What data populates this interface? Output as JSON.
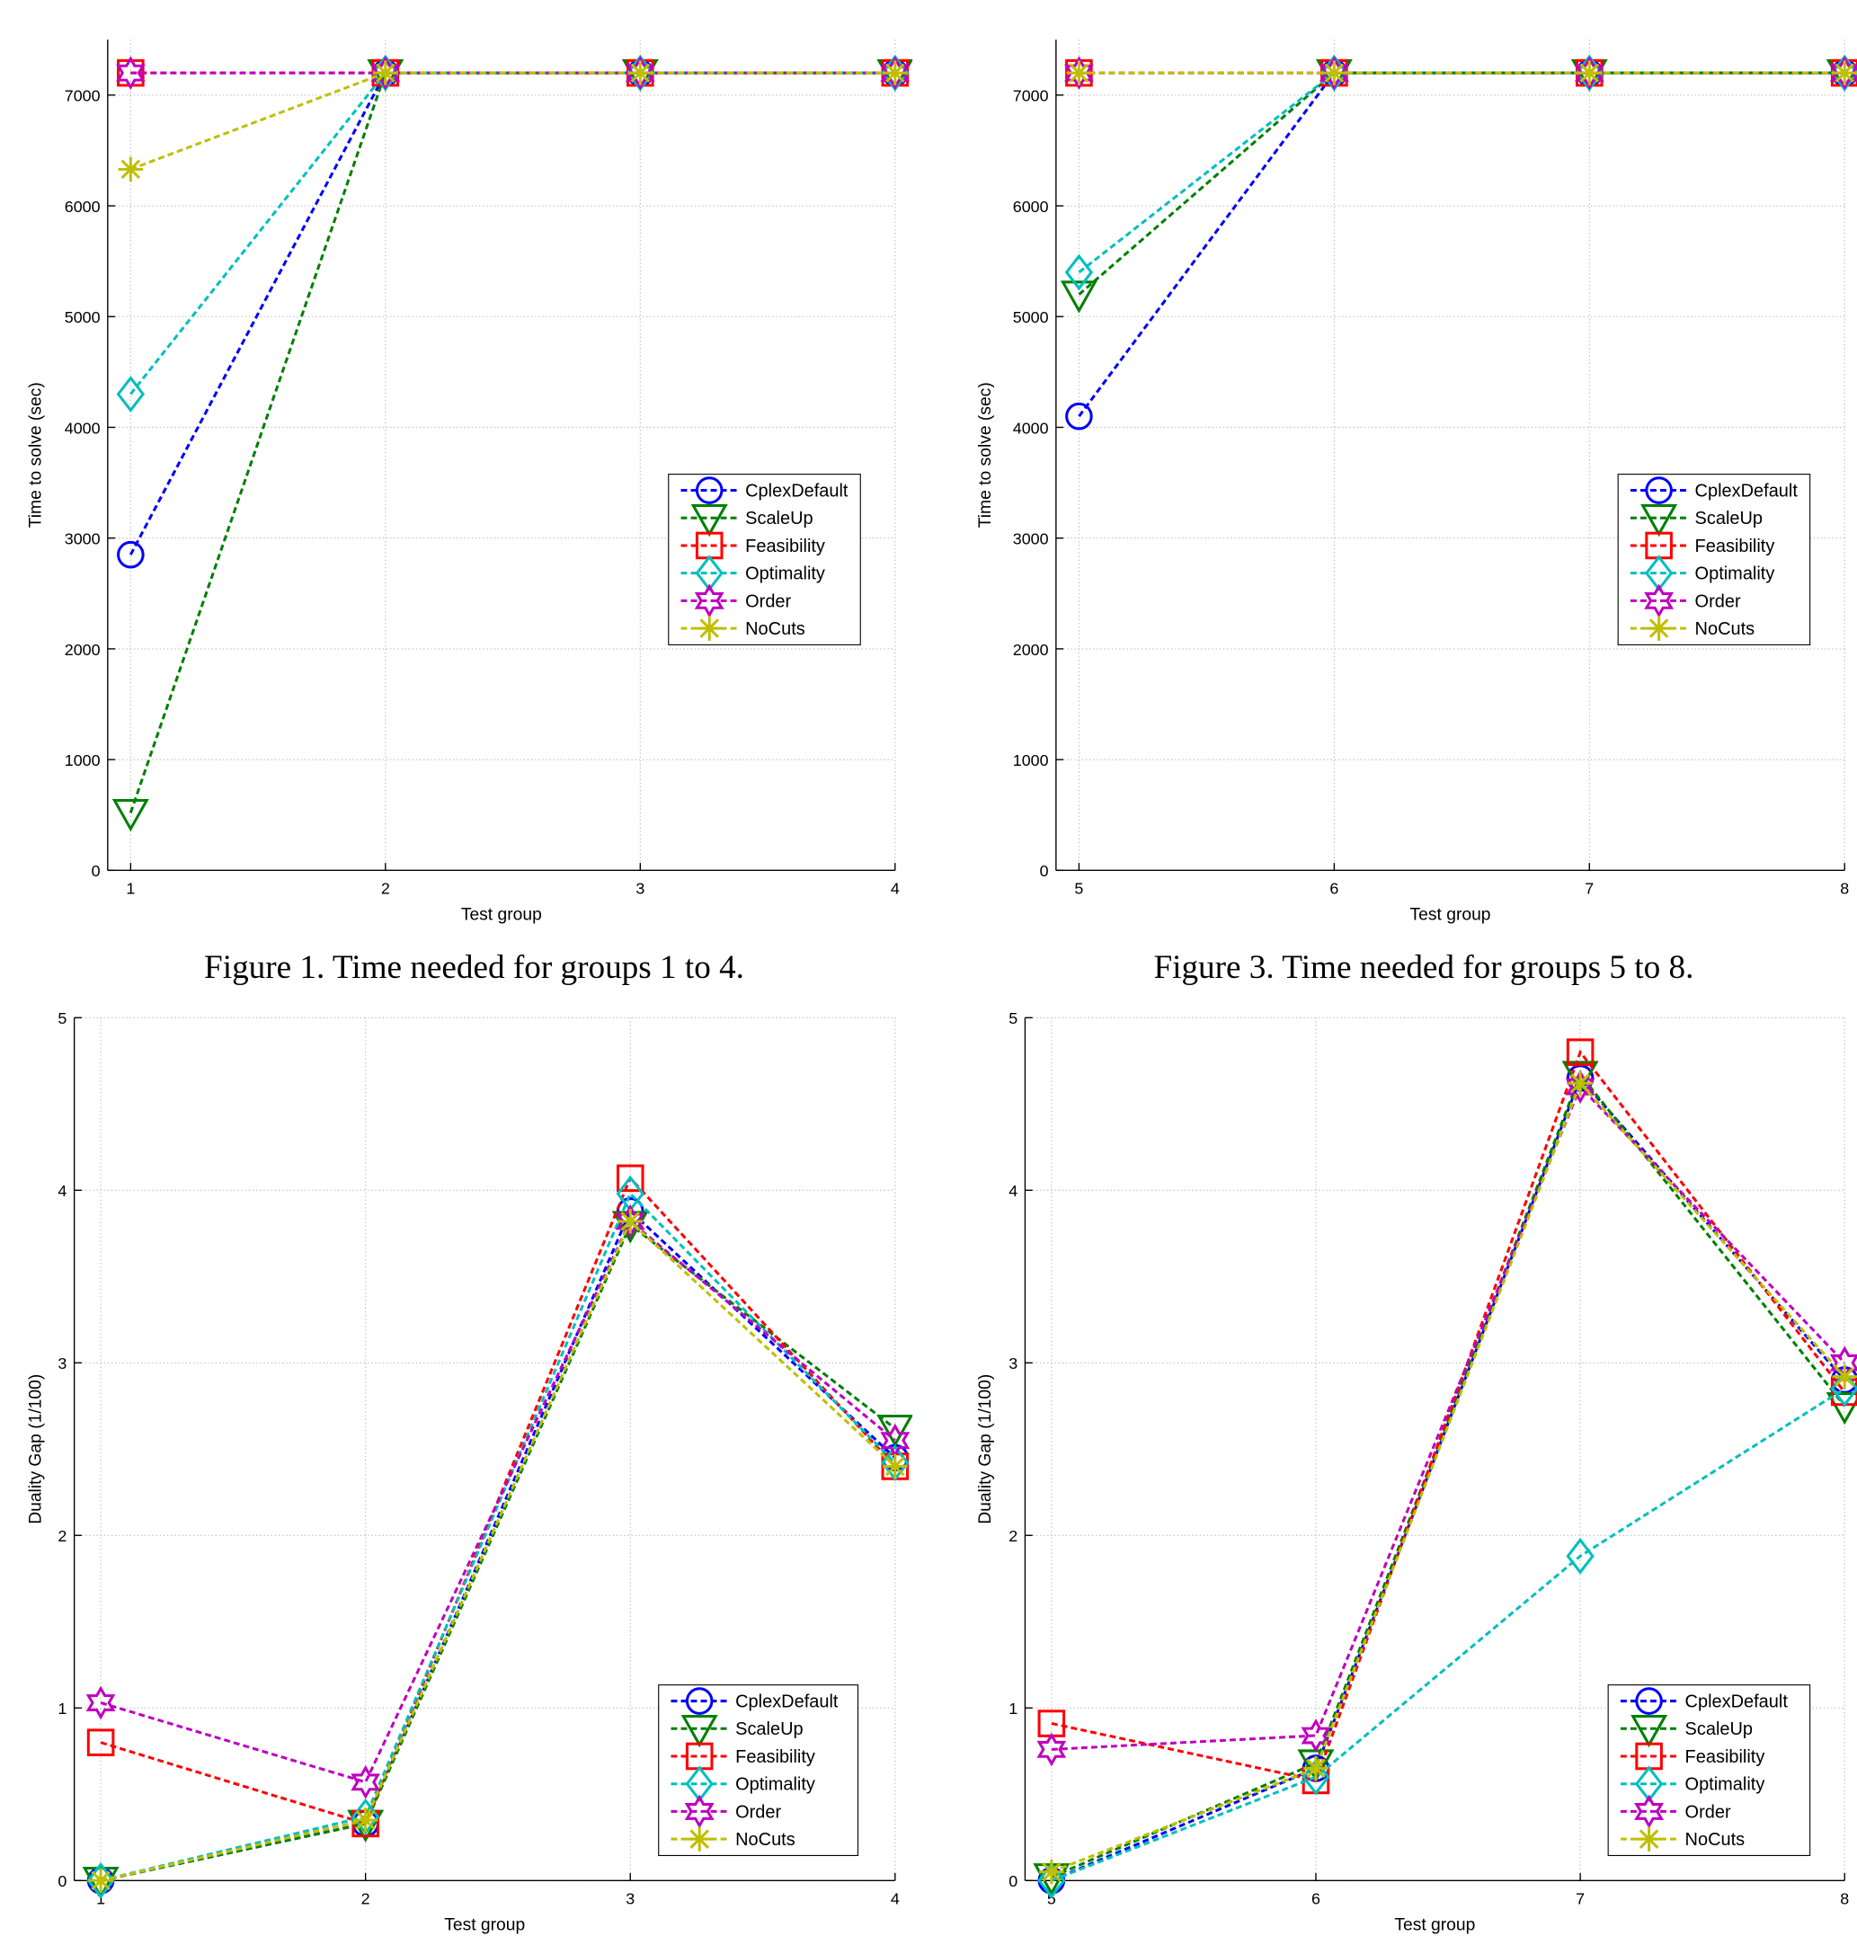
{
  "colors": {
    "CplexDefault": "#0000ff",
    "ScaleUp": "#007f00",
    "Feasibility": "#ff0000",
    "Optimality": "#00bfbf",
    "Order": "#bf00bf",
    "NoCuts": "#bfbf00"
  },
  "markers": {
    "CplexDefault": "circle",
    "ScaleUp": "triangle-down",
    "Feasibility": "square",
    "Optimality": "diamond",
    "Order": "hexagram",
    "NoCuts": "asterisk"
  },
  "chart_data": [
    {
      "type": "line",
      "caption": "Figure 1. Time needed for groups 1 to 4.",
      "xlabel": "Test group",
      "ylabel": "Time to solve (sec)",
      "x": [
        1,
        2,
        3,
        4
      ],
      "xlim": [
        0.91,
        4
      ],
      "ylim": [
        0,
        7500
      ],
      "xticks": [
        1,
        2,
        3,
        4
      ],
      "yticks": [
        0,
        1000,
        2000,
        3000,
        4000,
        5000,
        6000,
        7000
      ],
      "grid": true,
      "legend": "right",
      "series": [
        {
          "name": "CplexDefault",
          "values": [
            2850,
            7200,
            7200,
            7200
          ]
        },
        {
          "name": "ScaleUp",
          "values": [
            520,
            7200,
            7200,
            7200
          ]
        },
        {
          "name": "Feasibility",
          "values": [
            7200,
            7200,
            7200,
            7200
          ]
        },
        {
          "name": "Optimality",
          "values": [
            4300,
            7200,
            7200,
            7200
          ]
        },
        {
          "name": "Order",
          "values": [
            7200,
            7200,
            7200,
            7200
          ]
        },
        {
          "name": "NoCuts",
          "values": [
            6330,
            7200,
            7200,
            7200
          ]
        }
      ]
    },
    {
      "type": "line",
      "caption": "Figure 3. Time needed for groups 5 to 8.",
      "xlabel": "Test group",
      "ylabel": "Time to solve (sec)",
      "x": [
        5,
        6,
        7,
        8
      ],
      "xlim": [
        4.91,
        8
      ],
      "ylim": [
        0,
        7500
      ],
      "xticks": [
        5,
        6,
        7,
        8
      ],
      "yticks": [
        0,
        1000,
        2000,
        3000,
        4000,
        5000,
        6000,
        7000
      ],
      "grid": true,
      "legend": "right",
      "series": [
        {
          "name": "CplexDefault",
          "values": [
            4100,
            7200,
            7200,
            7200
          ]
        },
        {
          "name": "ScaleUp",
          "values": [
            5200,
            7200,
            7200,
            7200
          ]
        },
        {
          "name": "Feasibility",
          "values": [
            7200,
            7200,
            7200,
            7200
          ]
        },
        {
          "name": "Optimality",
          "values": [
            5400,
            7200,
            7200,
            7200
          ]
        },
        {
          "name": "Order",
          "values": [
            7200,
            7200,
            7200,
            7200
          ]
        },
        {
          "name": "NoCuts",
          "values": [
            7200,
            7200,
            7200,
            7200
          ]
        }
      ]
    },
    {
      "type": "line",
      "xlabel": "Test group",
      "ylabel": "Duality Gap (1/100)",
      "x": [
        1,
        2,
        3,
        4
      ],
      "xlim": [
        0.9,
        4
      ],
      "ylim": [
        0,
        5
      ],
      "xticks": [
        1,
        2,
        3,
        4
      ],
      "yticks": [
        0,
        1,
        2,
        3,
        4,
        5
      ],
      "grid": true,
      "legend": "bottom-right",
      "series": [
        {
          "name": "CplexDefault",
          "values": [
            0,
            0.33,
            3.88,
            2.45
          ]
        },
        {
          "name": "ScaleUp",
          "values": [
            0,
            0.33,
            3.8,
            2.62
          ]
        },
        {
          "name": "Feasibility",
          "values": [
            0.8,
            0.33,
            4.07,
            2.4
          ]
        },
        {
          "name": "Optimality",
          "values": [
            0,
            0.37,
            3.98,
            2.42
          ]
        },
        {
          "name": "Order",
          "values": [
            1.03,
            0.57,
            3.82,
            2.55
          ]
        },
        {
          "name": "NoCuts",
          "values": [
            0,
            0.35,
            3.82,
            2.4
          ]
        }
      ]
    },
    {
      "type": "line",
      "xlabel": "Test group",
      "ylabel": "Duality Gap (1/100)",
      "x": [
        5,
        6,
        7,
        8
      ],
      "xlim": [
        4.9,
        8
      ],
      "ylim": [
        0,
        5
      ],
      "xticks": [
        5,
        6,
        7,
        8
      ],
      "yticks": [
        0,
        1,
        2,
        3,
        4,
        5
      ],
      "grid": true,
      "legend": "bottom-right",
      "series": [
        {
          "name": "CplexDefault",
          "values": [
            0,
            0.65,
            4.65,
            2.9
          ]
        },
        {
          "name": "ScaleUp",
          "values": [
            0.02,
            0.68,
            4.67,
            2.75
          ]
        },
        {
          "name": "Feasibility",
          "values": [
            0.91,
            0.58,
            4.8,
            2.83
          ]
        },
        {
          "name": "Optimality",
          "values": [
            0,
            0.6,
            1.88,
            2.85
          ]
        },
        {
          "name": "Order",
          "values": [
            0.76,
            0.84,
            4.6,
            3.0
          ]
        },
        {
          "name": "NoCuts",
          "values": [
            0.05,
            0.65,
            4.62,
            2.92
          ]
        }
      ]
    }
  ]
}
